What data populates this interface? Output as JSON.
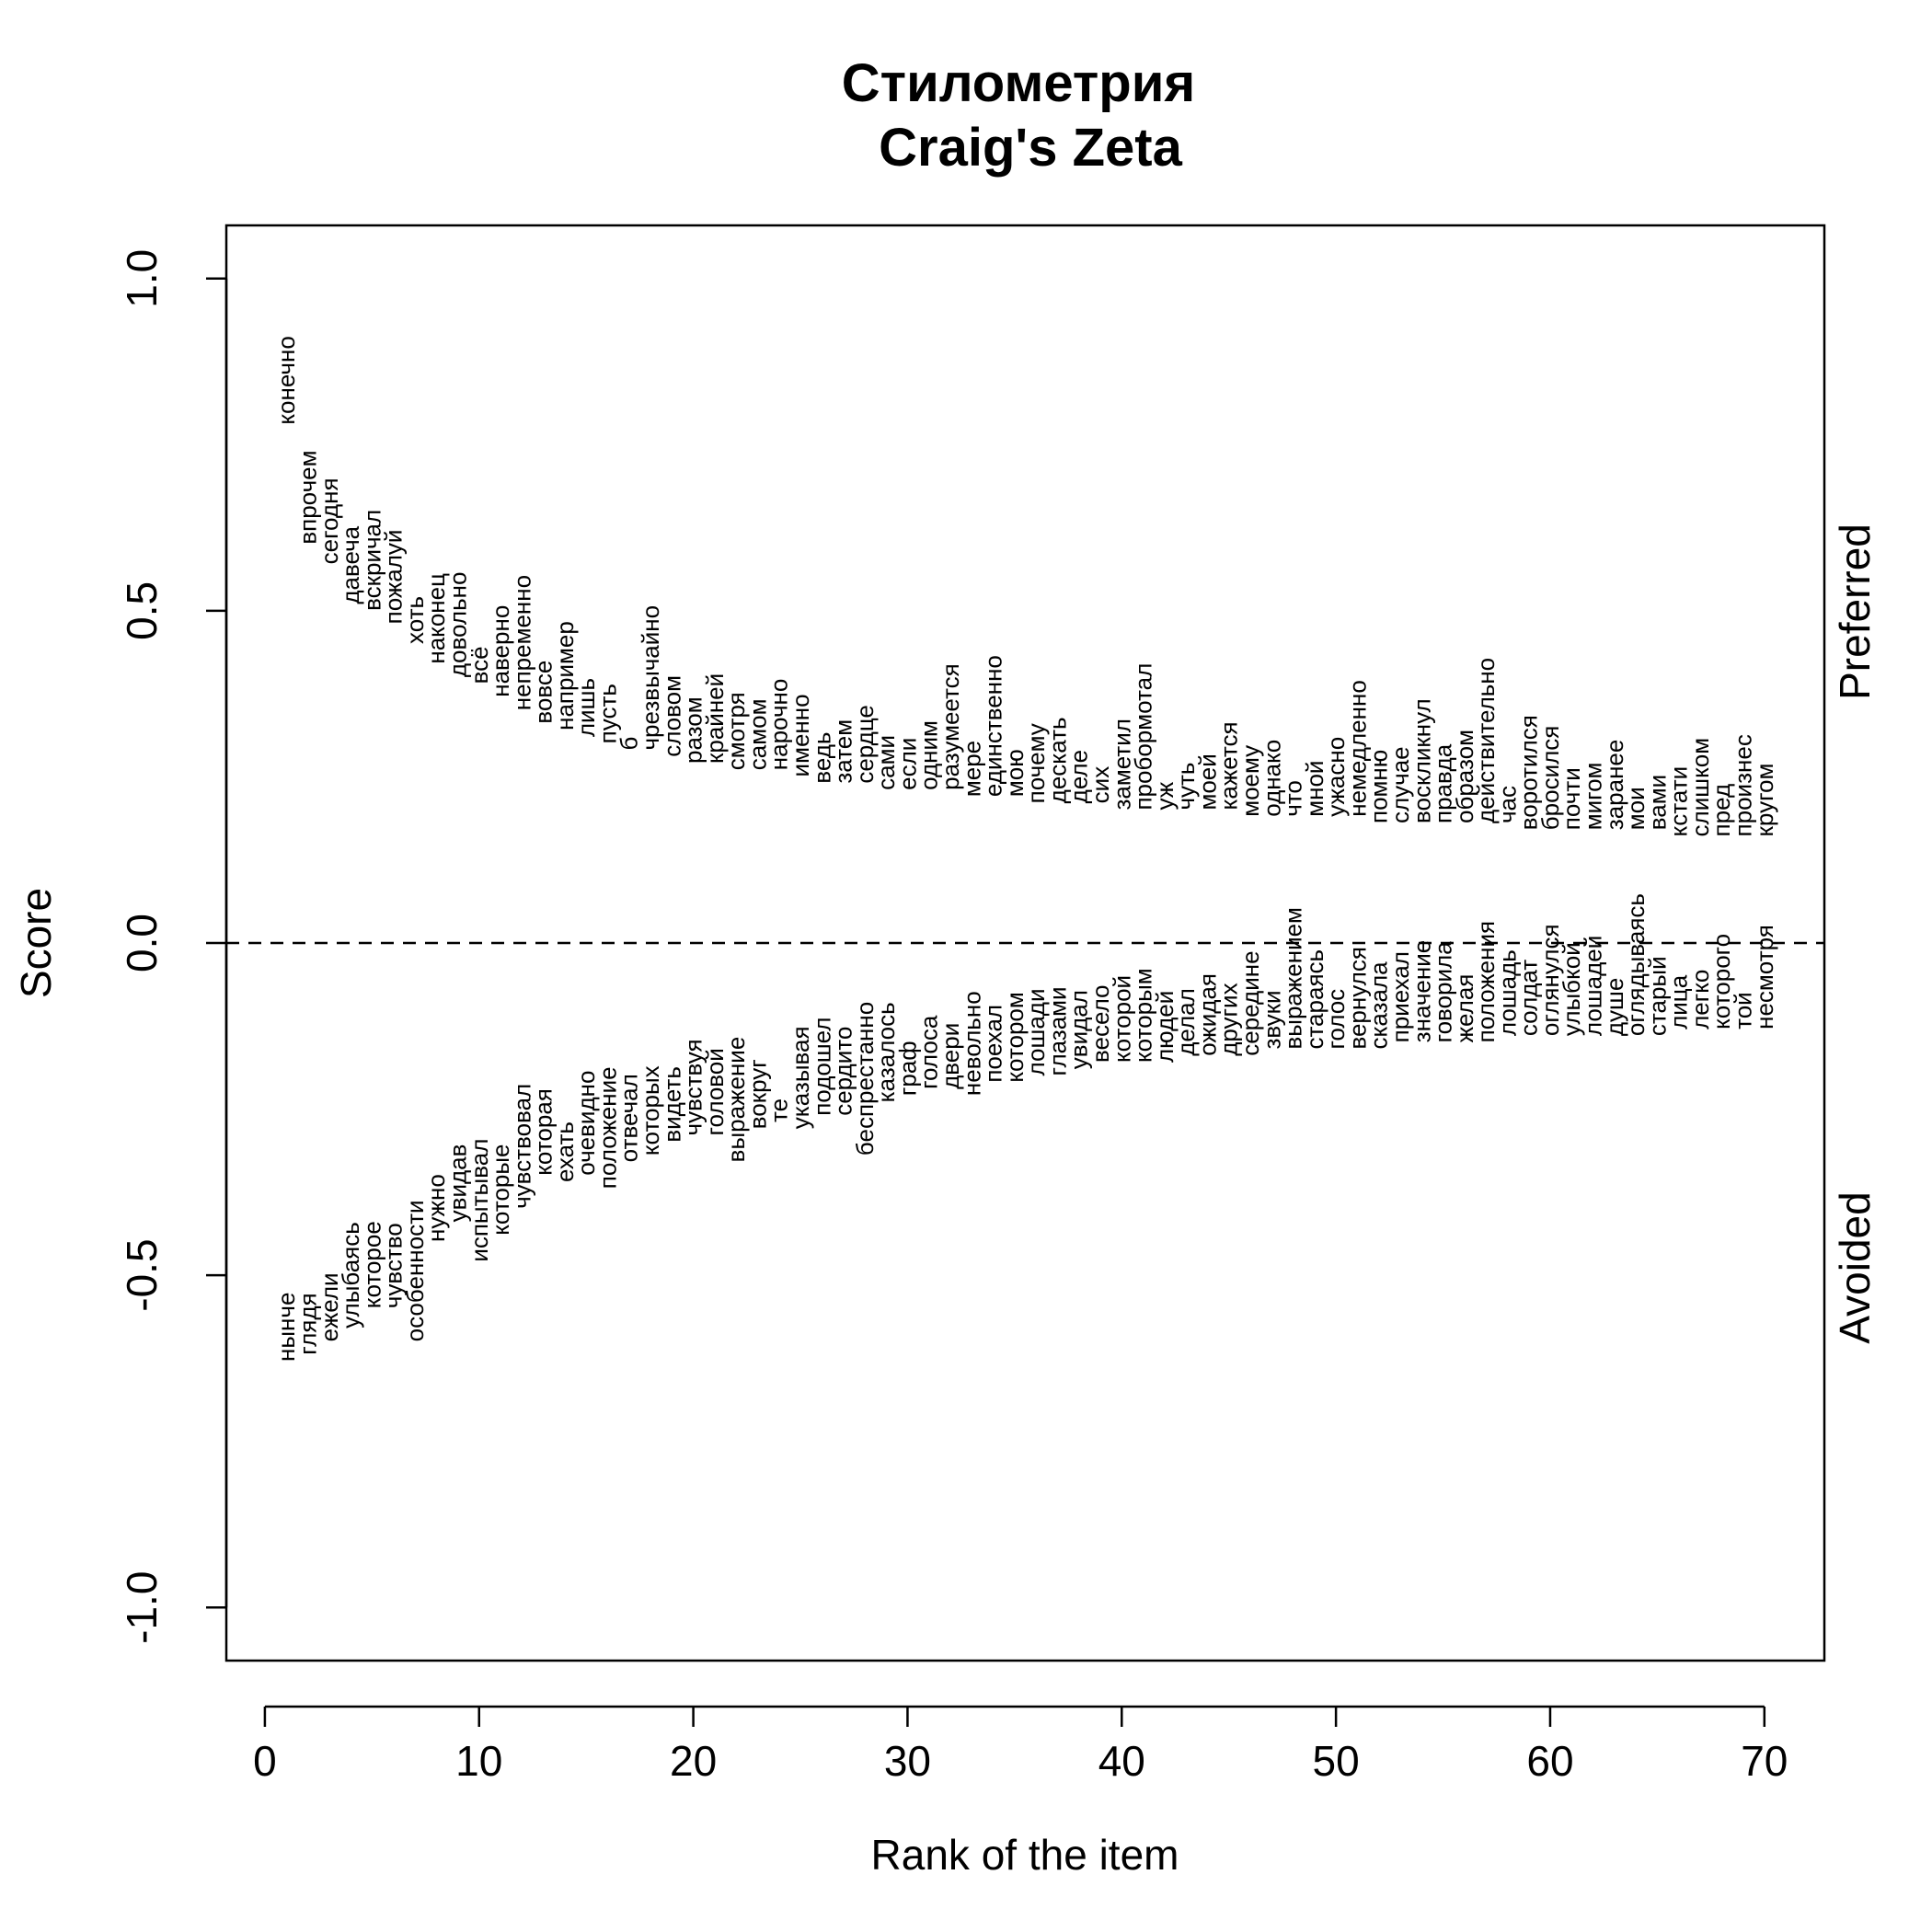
{
  "chart_data": {
    "type": "scatter",
    "title": "Стилометрия",
    "subtitle": "Craig's Zeta",
    "xlabel": "Rank of the item",
    "ylabel": "Score",
    "xlim": [
      -1.8,
      72.8
    ],
    "ylim": [
      -1.08,
      1.08
    ],
    "xticks": [
      "0",
      "10",
      "20",
      "30",
      "40",
      "50",
      "60",
      "70"
    ],
    "yticks": [
      "-1.0",
      "-0.5",
      "0.0",
      "0.5",
      "1.0"
    ],
    "grid": false,
    "reference_line": {
      "y": 0,
      "style": "dashed"
    },
    "side_labels": {
      "upper": "Preferred",
      "lower": "Avoided"
    },
    "series": [
      {
        "name": "Preferred",
        "words": [
          "конечно",
          "впрочем",
          "сегодня",
          "давеча",
          "вскричал",
          "пожалуй",
          "хоть",
          "наконец",
          "довольно",
          "всё",
          "наверно",
          "непременно",
          "вовсе",
          "например",
          "лишь",
          "пусть",
          "б",
          "чрезвычайно",
          "словом",
          "разом",
          "крайней",
          "смотря",
          "самом",
          "нарочно",
          "именно",
          "ведь",
          "затем",
          "сердце",
          "сами",
          "если",
          "одним",
          "разумеется",
          "мере",
          "единственно",
          "мою",
          "почему",
          "дескать",
          "деле",
          "сих",
          "заметил",
          "пробормотал",
          "уж",
          "чуть",
          "моей",
          "кажется",
          "моему",
          "однако",
          "что",
          "мной",
          "ужасно",
          "немедленно",
          "помню",
          "случае",
          "воскликнул",
          "правда",
          "образом",
          "действительно",
          "час",
          "воротился",
          "бросился",
          "почти",
          "мигом",
          "заранее",
          "мои",
          "вами",
          "кстати",
          "слишком",
          "пред",
          "произнес",
          "кругом"
        ],
        "values": [
          0.78,
          0.6,
          0.57,
          0.51,
          0.5,
          0.48,
          0.45,
          0.42,
          0.4,
          0.39,
          0.37,
          0.35,
          0.33,
          0.32,
          0.31,
          0.3,
          0.29,
          0.29,
          0.28,
          0.27,
          0.27,
          0.26,
          0.26,
          0.26,
          0.25,
          0.24,
          0.24,
          0.24,
          0.23,
          0.23,
          0.23,
          0.23,
          0.22,
          0.22,
          0.22,
          0.21,
          0.21,
          0.21,
          0.21,
          0.2,
          0.2,
          0.2,
          0.2,
          0.2,
          0.2,
          0.19,
          0.19,
          0.19,
          0.19,
          0.19,
          0.19,
          0.18,
          0.18,
          0.18,
          0.18,
          0.18,
          0.18,
          0.18,
          0.17,
          0.17,
          0.17,
          0.17,
          0.17,
          0.17,
          0.17,
          0.16,
          0.16,
          0.16,
          0.16,
          0.16
        ]
      },
      {
        "name": "Avoided",
        "words": [
          "нынче",
          "глядя",
          "ежели",
          "улыбаясь",
          "которое",
          "чувство",
          "особенности",
          "нужно",
          "увидав",
          "испытывал",
          "которые",
          "чувствовал",
          "которая",
          "ехать",
          "очевидно",
          "положение",
          "отвечал",
          "которых",
          "видеть",
          "чувствуя",
          "головой",
          "выражение",
          "вокруг",
          "те",
          "указывая",
          "подошел",
          "сердито",
          "беспрестанно",
          "казалось",
          "граф",
          "голоса",
          "двери",
          "невольно",
          "поехал",
          "котором",
          "лошади",
          "глазами",
          "увидал",
          "весело",
          "которой",
          "которым",
          "людей",
          "делал",
          "ожидая",
          "других",
          "середине",
          "звуки",
          "выражением",
          "стараясь",
          "голос",
          "вернулся",
          "сказала",
          "приехал",
          "значение",
          "говорила",
          "желая",
          "положения",
          "лошадь",
          "солдат",
          "оглянулся",
          "улыбкой",
          "лошадей",
          "душе",
          "оглядываясь",
          "старый",
          "лица",
          "легко",
          "которого",
          "той",
          "несмотря"
        ],
        "values": [
          -0.63,
          -0.62,
          -0.6,
          -0.58,
          -0.55,
          -0.55,
          -0.6,
          -0.45,
          -0.42,
          -0.48,
          -0.44,
          -0.4,
          -0.35,
          -0.36,
          -0.35,
          -0.37,
          -0.33,
          -0.32,
          -0.3,
          -0.29,
          -0.29,
          -0.33,
          -0.28,
          -0.27,
          -0.28,
          -0.26,
          -0.26,
          -0.32,
          -0.24,
          -0.23,
          -0.22,
          -0.22,
          -0.23,
          -0.21,
          -0.21,
          -0.2,
          -0.2,
          -0.19,
          -0.18,
          -0.18,
          -0.18,
          -0.18,
          -0.17,
          -0.17,
          -0.17,
          -0.17,
          -0.16,
          -0.16,
          -0.16,
          -0.16,
          -0.16,
          -0.16,
          -0.15,
          -0.15,
          -0.15,
          -0.15,
          -0.15,
          -0.14,
          -0.14,
          -0.14,
          -0.14,
          -0.14,
          -0.14,
          -0.14,
          -0.14,
          -0.13,
          -0.13,
          -0.13,
          -0.13,
          -0.13
        ]
      }
    ]
  }
}
